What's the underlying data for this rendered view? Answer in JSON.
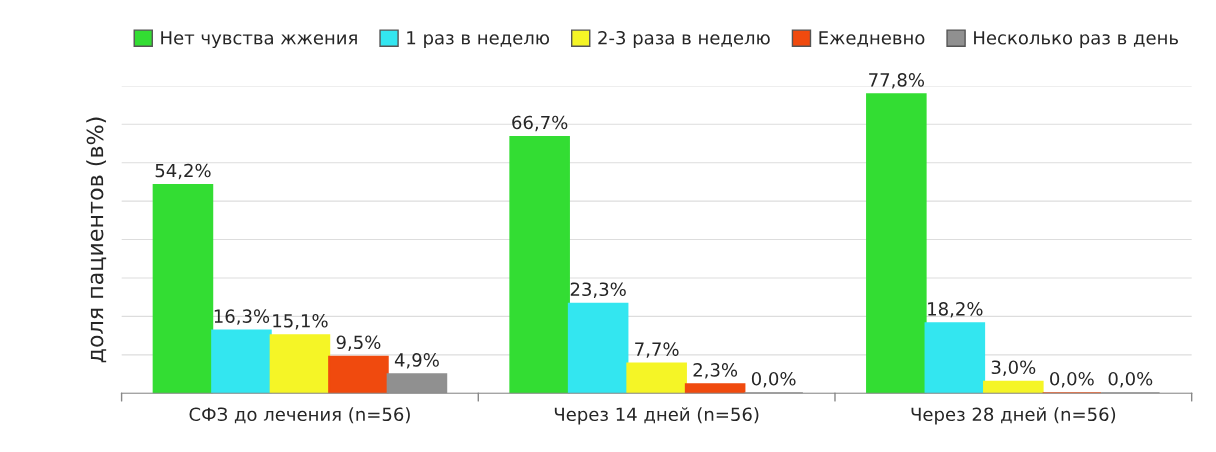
{
  "chart_data": {
    "type": "bar",
    "ylabel": "доля пациентов (в%)",
    "categories": [
      "СФЗ до лечения (n=56)",
      "Через 14 дней (n=56)",
      "Через 28 дней (n=56)"
    ],
    "series": [
      {
        "name": "Нет чувства жжения",
        "color": "#33dd33",
        "values": [
          54.2,
          66.7,
          77.8
        ],
        "value_labels": [
          "54,2%",
          "66,7%",
          "77,8%"
        ]
      },
      {
        "name": "1 раз в неделю",
        "color": "#33e6f0",
        "values": [
          16.3,
          23.3,
          18.2
        ],
        "value_labels": [
          "16,3%",
          "23,3%",
          "18,2%"
        ]
      },
      {
        "name": "2-3 раза в неделю",
        "color": "#f5f526",
        "values": [
          15.1,
          7.7,
          3.0
        ],
        "value_labels": [
          "15,1%",
          "7,7%",
          "3,0%"
        ]
      },
      {
        "name": "Ежедневно",
        "color": "#f04a0e",
        "values": [
          9.5,
          2.3,
          0.0
        ],
        "value_labels": [
          "9,5%",
          "2,3%",
          "0,0%"
        ]
      },
      {
        "name": "Несколько раз в день",
        "color": "#909090",
        "values": [
          4.9,
          0.0,
          0.0
        ],
        "value_labels": [
          "4,9%",
          "0,0%",
          "0,0%"
        ]
      }
    ],
    "ylim": [
      0,
      80
    ],
    "yticks": [
      {
        "value": 0,
        "label": null
      },
      {
        "value": 10,
        "label": null
      },
      {
        "value": 20,
        "label": null
      },
      {
        "value": 30,
        "label": null
      },
      {
        "value": 40,
        "label": null
      },
      {
        "value": 50,
        "label": null
      },
      {
        "value": 60,
        "label": null
      },
      {
        "value": 70,
        "label": null
      },
      {
        "value": 80,
        "label": null
      }
    ],
    "grid": "y",
    "legend": "top",
    "tick_labels": "x"
  }
}
